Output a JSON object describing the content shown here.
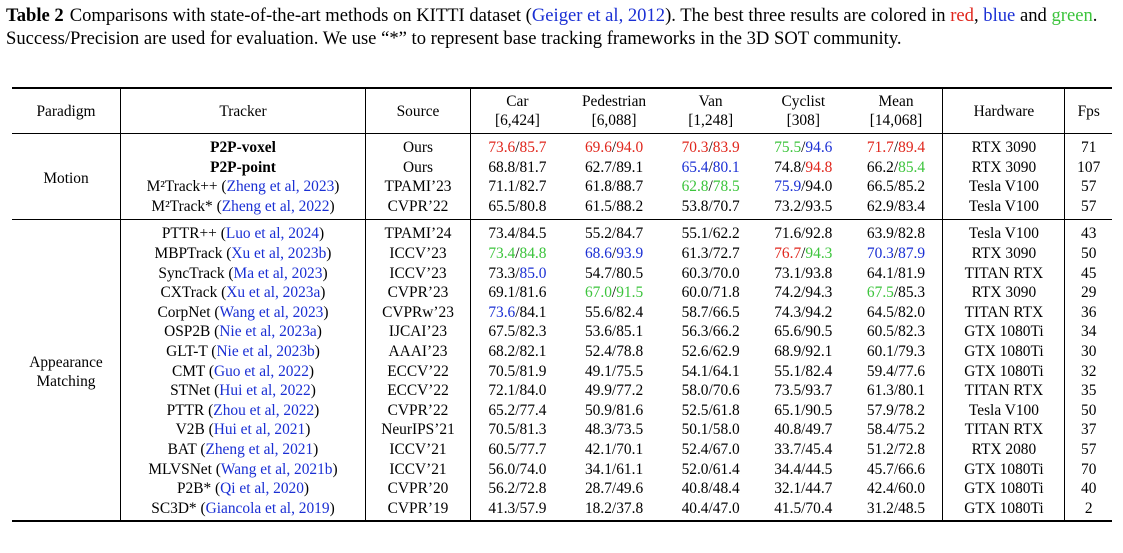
{
  "caption": {
    "label": "Table 2",
    "text_1": "Comparisons with state-of-the-art methods on KITTI dataset (",
    "cite": "Geiger et al, 2012",
    "text_2": "). The best three results are colored in ",
    "red_word": "red",
    "sep_1": ", ",
    "blue_word": "blue",
    "sep_2": " and ",
    "green_word": "green",
    "text_3": ". Success/Precision are used for evaluation. We use “*” to represent base tracking frameworks in the 3D SOT community."
  },
  "colors": {
    "red": "#e0261c",
    "blue": "#1a2fd4",
    "green": "#3cc43c"
  },
  "headers": {
    "paradigm": "Paradigm",
    "tracker": "Tracker",
    "source": "Source",
    "car": "Car",
    "car_n": "[6,424]",
    "pedestrian": "Pedestrian",
    "pedestrian_n": "[6,088]",
    "van": "Van",
    "van_n": "[1,248]",
    "cyclist": "Cyclist",
    "cyclist_n": "[308]",
    "mean": "Mean",
    "mean_n": "[14,068]",
    "hardware": "Hardware",
    "fps": "Fps"
  },
  "groups": [
    {
      "paradigm": [
        "Motion"
      ],
      "rows": [
        {
          "name": "P2P-voxel",
          "cite": "",
          "bold": true,
          "source": "Ours",
          "car": [
            "73.6",
            "85.7"
          ],
          "car_c": [
            "red",
            "red"
          ],
          "ped": [
            "69.6",
            "94.0"
          ],
          "ped_c": [
            "red",
            "red"
          ],
          "van": [
            "70.3",
            "83.9"
          ],
          "van_c": [
            "red",
            "red"
          ],
          "cyc": [
            "75.5",
            "94.6"
          ],
          "cyc_c": [
            "green",
            "blue"
          ],
          "mean": [
            "71.7",
            "89.4"
          ],
          "mean_c": [
            "red",
            "red"
          ],
          "hardware": "RTX 3090",
          "fps": "71"
        },
        {
          "name": "P2P-point",
          "cite": "",
          "bold": true,
          "source": "Ours",
          "car": [
            "68.8",
            "81.7"
          ],
          "car_c": [
            "",
            ""
          ],
          "ped": [
            "62.7",
            "89.1"
          ],
          "ped_c": [
            "",
            ""
          ],
          "van": [
            "65.4",
            "80.1"
          ],
          "van_c": [
            "blue",
            "blue"
          ],
          "cyc": [
            "74.8",
            "94.8"
          ],
          "cyc_c": [
            "",
            "red"
          ],
          "mean": [
            "66.2",
            "85.4"
          ],
          "mean_c": [
            "",
            "green"
          ],
          "hardware": "RTX 3090",
          "fps": "107"
        },
        {
          "name": "M²Track++",
          "cite": "Zheng et al, 2023",
          "bold": false,
          "source": "TPAMI’23",
          "car": [
            "71.1",
            "82.7"
          ],
          "car_c": [
            "",
            ""
          ],
          "ped": [
            "61.8",
            "88.7"
          ],
          "ped_c": [
            "",
            ""
          ],
          "van": [
            "62.8",
            "78.5"
          ],
          "van_c": [
            "green",
            "green"
          ],
          "cyc": [
            "75.9",
            "94.0"
          ],
          "cyc_c": [
            "blue",
            ""
          ],
          "mean": [
            "66.5",
            "85.2"
          ],
          "mean_c": [
            "",
            ""
          ],
          "hardware": "Tesla V100",
          "fps": "57"
        },
        {
          "name": "M²Track*",
          "cite": "Zheng et al, 2022",
          "bold": false,
          "source": "CVPR’22",
          "car": [
            "65.5",
            "80.8"
          ],
          "car_c": [
            "",
            ""
          ],
          "ped": [
            "61.5",
            "88.2"
          ],
          "ped_c": [
            "",
            ""
          ],
          "van": [
            "53.8",
            "70.7"
          ],
          "van_c": [
            "",
            ""
          ],
          "cyc": [
            "73.2",
            "93.5"
          ],
          "cyc_c": [
            "",
            ""
          ],
          "mean": [
            "62.9",
            "83.4"
          ],
          "mean_c": [
            "",
            ""
          ],
          "hardware": "Tesla V100",
          "fps": "57"
        }
      ]
    },
    {
      "paradigm": [
        "Appearance",
        "Matching"
      ],
      "rows": [
        {
          "name": "PTTR++",
          "cite": "Luo et al, 2024",
          "bold": false,
          "source": "TPAMI’24",
          "car": [
            "73.4",
            "84.5"
          ],
          "car_c": [
            "",
            ""
          ],
          "ped": [
            "55.2",
            "84.7"
          ],
          "ped_c": [
            "",
            ""
          ],
          "van": [
            "55.1",
            "62.2"
          ],
          "van_c": [
            "",
            ""
          ],
          "cyc": [
            "71.6",
            "92.8"
          ],
          "cyc_c": [
            "",
            ""
          ],
          "mean": [
            "63.9",
            "82.8"
          ],
          "mean_c": [
            "",
            ""
          ],
          "hardware": "Tesla V100",
          "fps": "43"
        },
        {
          "name": "MBPTrack",
          "cite": "Xu et al, 2023b",
          "bold": false,
          "source": "ICCV’23",
          "car": [
            "73.4",
            "84.8"
          ],
          "car_c": [
            "green",
            "green"
          ],
          "ped": [
            "68.6",
            "93.9"
          ],
          "ped_c": [
            "blue",
            "blue"
          ],
          "van": [
            "61.3",
            "72.7"
          ],
          "van_c": [
            "",
            ""
          ],
          "cyc": [
            "76.7",
            "94.3"
          ],
          "cyc_c": [
            "red",
            "green"
          ],
          "mean": [
            "70.3",
            "87.9"
          ],
          "mean_c": [
            "blue",
            "blue"
          ],
          "hardware": "RTX 3090",
          "fps": "50"
        },
        {
          "name": "SyncTrack",
          "cite": "Ma et al, 2023",
          "bold": false,
          "source": "ICCV’23",
          "car": [
            "73.3",
            "85.0"
          ],
          "car_c": [
            "",
            "blue"
          ],
          "ped": [
            "54.7",
            "80.5"
          ],
          "ped_c": [
            "",
            ""
          ],
          "van": [
            "60.3",
            "70.0"
          ],
          "van_c": [
            "",
            ""
          ],
          "cyc": [
            "73.1",
            "93.8"
          ],
          "cyc_c": [
            "",
            ""
          ],
          "mean": [
            "64.1",
            "81.9"
          ],
          "mean_c": [
            "",
            ""
          ],
          "hardware": "TITAN RTX",
          "fps": "45"
        },
        {
          "name": "CXTrack",
          "cite": "Xu et al, 2023a",
          "bold": false,
          "source": "CVPR’23",
          "car": [
            "69.1",
            "81.6"
          ],
          "car_c": [
            "",
            ""
          ],
          "ped": [
            "67.0",
            "91.5"
          ],
          "ped_c": [
            "green",
            "green"
          ],
          "van": [
            "60.0",
            "71.8"
          ],
          "van_c": [
            "",
            ""
          ],
          "cyc": [
            "74.2",
            "94.3"
          ],
          "cyc_c": [
            "",
            ""
          ],
          "mean": [
            "67.5",
            "85.3"
          ],
          "mean_c": [
            "green",
            ""
          ],
          "hardware": "RTX 3090",
          "fps": "29"
        },
        {
          "name": "CorpNet",
          "cite": "Wang et al, 2023",
          "bold": false,
          "source": "CVPRw’23",
          "car": [
            "73.6",
            "84.1"
          ],
          "car_c": [
            "blue",
            ""
          ],
          "ped": [
            "55.6",
            "82.4"
          ],
          "ped_c": [
            "",
            ""
          ],
          "van": [
            "58.7",
            "66.5"
          ],
          "van_c": [
            "",
            ""
          ],
          "cyc": [
            "74.3",
            "94.2"
          ],
          "cyc_c": [
            "",
            ""
          ],
          "mean": [
            "64.5",
            "82.0"
          ],
          "mean_c": [
            "",
            ""
          ],
          "hardware": "TITAN RTX",
          "fps": "36"
        },
        {
          "name": "OSP2B",
          "cite": "Nie et al, 2023a",
          "bold": false,
          "source": "IJCAI’23",
          "car": [
            "67.5",
            "82.3"
          ],
          "car_c": [
            "",
            ""
          ],
          "ped": [
            "53.6",
            "85.1"
          ],
          "ped_c": [
            "",
            ""
          ],
          "van": [
            "56.3",
            "66.2"
          ],
          "van_c": [
            "",
            ""
          ],
          "cyc": [
            "65.6",
            "90.5"
          ],
          "cyc_c": [
            "",
            ""
          ],
          "mean": [
            "60.5",
            "82.3"
          ],
          "mean_c": [
            "",
            ""
          ],
          "hardware": "GTX 1080Ti",
          "fps": "34"
        },
        {
          "name": "GLT-T",
          "cite": "Nie et al, 2023b",
          "bold": false,
          "source": "AAAI’23",
          "car": [
            "68.2",
            "82.1"
          ],
          "car_c": [
            "",
            ""
          ],
          "ped": [
            "52.4",
            "78.8"
          ],
          "ped_c": [
            "",
            ""
          ],
          "van": [
            "52.6",
            "62.9"
          ],
          "van_c": [
            "",
            ""
          ],
          "cyc": [
            "68.9",
            "92.1"
          ],
          "cyc_c": [
            "",
            ""
          ],
          "mean": [
            "60.1",
            "79.3"
          ],
          "mean_c": [
            "",
            ""
          ],
          "hardware": "GTX 1080Ti",
          "fps": "30"
        },
        {
          "name": "CMT",
          "cite": "Guo et al, 2022",
          "bold": false,
          "source": "ECCV’22",
          "car": [
            "70.5",
            "81.9"
          ],
          "car_c": [
            "",
            ""
          ],
          "ped": [
            "49.1",
            "75.5"
          ],
          "ped_c": [
            "",
            ""
          ],
          "van": [
            "54.1",
            "64.1"
          ],
          "van_c": [
            "",
            ""
          ],
          "cyc": [
            "55.1",
            "82.4"
          ],
          "cyc_c": [
            "",
            ""
          ],
          "mean": [
            "59.4",
            "77.6"
          ],
          "mean_c": [
            "",
            ""
          ],
          "hardware": "GTX 1080Ti",
          "fps": "32"
        },
        {
          "name": "STNet",
          "cite": "Hui et al, 2022",
          "bold": false,
          "source": "ECCV’22",
          "car": [
            "72.1",
            "84.0"
          ],
          "car_c": [
            "",
            ""
          ],
          "ped": [
            "49.9",
            "77.2"
          ],
          "ped_c": [
            "",
            ""
          ],
          "van": [
            "58.0",
            "70.6"
          ],
          "van_c": [
            "",
            ""
          ],
          "cyc": [
            "73.5",
            "93.7"
          ],
          "cyc_c": [
            "",
            ""
          ],
          "mean": [
            "61.3",
            "80.1"
          ],
          "mean_c": [
            "",
            ""
          ],
          "hardware": "TITAN RTX",
          "fps": "35"
        },
        {
          "name": "PTTR",
          "cite": "Zhou et al, 2022",
          "bold": false,
          "source": "CVPR’22",
          "car": [
            "65.2",
            "77.4"
          ],
          "car_c": [
            "",
            ""
          ],
          "ped": [
            "50.9",
            "81.6"
          ],
          "ped_c": [
            "",
            ""
          ],
          "van": [
            "52.5",
            "61.8"
          ],
          "van_c": [
            "",
            ""
          ],
          "cyc": [
            "65.1",
            "90.5"
          ],
          "cyc_c": [
            "",
            ""
          ],
          "mean": [
            "57.9",
            "78.2"
          ],
          "mean_c": [
            "",
            ""
          ],
          "hardware": "Tesla V100",
          "fps": "50"
        },
        {
          "name": "V2B",
          "cite": "Hui et al, 2021",
          "bold": false,
          "source": "NeurIPS’21",
          "car": [
            "70.5",
            "81.3"
          ],
          "car_c": [
            "",
            ""
          ],
          "ped": [
            "48.3",
            "73.5"
          ],
          "ped_c": [
            "",
            ""
          ],
          "van": [
            "50.1",
            "58.0"
          ],
          "van_c": [
            "",
            ""
          ],
          "cyc": [
            "40.8",
            "49.7"
          ],
          "cyc_c": [
            "",
            ""
          ],
          "mean": [
            "58.4",
            "75.2"
          ],
          "mean_c": [
            "",
            ""
          ],
          "hardware": "TITAN RTX",
          "fps": "37"
        },
        {
          "name": "BAT",
          "cite": "Zheng et al, 2021",
          "bold": false,
          "source": "ICCV’21",
          "car": [
            "60.5",
            "77.7"
          ],
          "car_c": [
            "",
            ""
          ],
          "ped": [
            "42.1",
            "70.1"
          ],
          "ped_c": [
            "",
            ""
          ],
          "van": [
            "52.4",
            "67.0"
          ],
          "van_c": [
            "",
            ""
          ],
          "cyc": [
            "33.7",
            "45.4"
          ],
          "cyc_c": [
            "",
            ""
          ],
          "mean": [
            "51.2",
            "72.8"
          ],
          "mean_c": [
            "",
            ""
          ],
          "hardware": "RTX 2080",
          "fps": "57"
        },
        {
          "name": "MLVSNet",
          "cite": "Wang et al, 2021b",
          "bold": false,
          "source": "ICCV’21",
          "car": [
            "56.0",
            "74.0"
          ],
          "car_c": [
            "",
            ""
          ],
          "ped": [
            "34.1",
            "61.1"
          ],
          "ped_c": [
            "",
            ""
          ],
          "van": [
            "52.0",
            "61.4"
          ],
          "van_c": [
            "",
            ""
          ],
          "cyc": [
            "34.4",
            "44.5"
          ],
          "cyc_c": [
            "",
            ""
          ],
          "mean": [
            "45.7",
            "66.6"
          ],
          "mean_c": [
            "",
            ""
          ],
          "hardware": "GTX 1080Ti",
          "fps": "70"
        },
        {
          "name": "P2B*",
          "cite": "Qi et al, 2020",
          "bold": false,
          "source": "CVPR’20",
          "car": [
            "56.2",
            "72.8"
          ],
          "car_c": [
            "",
            ""
          ],
          "ped": [
            "28.7",
            "49.6"
          ],
          "ped_c": [
            "",
            ""
          ],
          "van": [
            "40.8",
            "48.4"
          ],
          "van_c": [
            "",
            ""
          ],
          "cyc": [
            "32.1",
            "44.7"
          ],
          "cyc_c": [
            "",
            ""
          ],
          "mean": [
            "42.4",
            "60.0"
          ],
          "mean_c": [
            "",
            ""
          ],
          "hardware": "GTX 1080Ti",
          "fps": "40"
        },
        {
          "name": "SC3D*",
          "cite": "Giancola et al, 2019",
          "bold": false,
          "source": "CVPR’19",
          "car": [
            "41.3",
            "57.9"
          ],
          "car_c": [
            "",
            ""
          ],
          "ped": [
            "18.2",
            "37.8"
          ],
          "ped_c": [
            "",
            ""
          ],
          "van": [
            "40.4",
            "47.0"
          ],
          "van_c": [
            "",
            ""
          ],
          "cyc": [
            "41.5",
            "70.4"
          ],
          "cyc_c": [
            "",
            ""
          ],
          "mean": [
            "31.2",
            "48.5"
          ],
          "mean_c": [
            "",
            ""
          ],
          "hardware": "GTX 1080Ti",
          "fps": "2"
        }
      ]
    }
  ]
}
